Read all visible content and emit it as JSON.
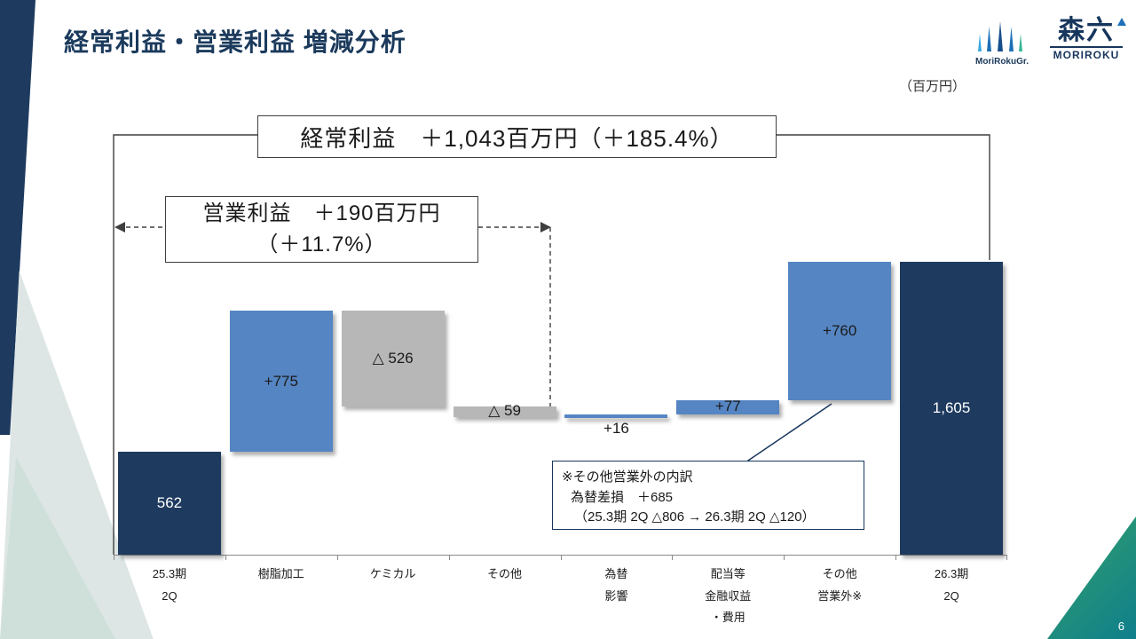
{
  "slide": {
    "title": "経常利益・営業利益 増減分析",
    "unit_label": "（百万円）",
    "page_number": "6"
  },
  "logos": {
    "group_caption": "MoriRokuGr.",
    "brand_kanji": "森六",
    "brand_roman": "MORIROKU"
  },
  "annotations": {
    "ordinary_profit": "経常利益　＋1,043百万円（＋185.4%）",
    "operating_profit_line1": "営業利益　＋190百万円",
    "operating_profit_line2": "（＋11.7%）",
    "callout_line1": "※その他営業外の内訳",
    "callout_line2": "為替差損　＋685",
    "callout_line3": "（25.3期 2Q △806 → 26.3期 2Q △120）"
  },
  "chart_data": {
    "type": "bar",
    "subtype": "waterfall",
    "title": "経常利益・営業利益 増減分析",
    "unit": "百万円",
    "categories": [
      [
        "25.3期",
        "2Q"
      ],
      [
        "樹脂加工"
      ],
      [
        "ケミカル"
      ],
      [
        "その他"
      ],
      [
        "為替",
        "影響"
      ],
      [
        "配当等",
        "金融収益",
        "・費用"
      ],
      [
        "その他",
        "営業外※"
      ],
      [
        "26.3期",
        "2Q"
      ]
    ],
    "values": [
      562,
      775,
      -526,
      -59,
      16,
      77,
      760,
      1605
    ],
    "bar_labels": [
      "562",
      "+775",
      "△ 526",
      "△ 59",
      "+16",
      "+77",
      "+760",
      "1,605"
    ],
    "bar_roles": [
      "total",
      "increase",
      "decrease",
      "decrease",
      "increase",
      "increase",
      "increase",
      "total"
    ],
    "label_placement": [
      "inside",
      "inside",
      "inside",
      "center",
      "below",
      "center",
      "inside",
      "inside"
    ],
    "start_total": 562,
    "end_total": 1605,
    "ordinary_profit_change": "+1,043",
    "ordinary_profit_change_pct": "+185.4%",
    "operating_profit_change": "+190",
    "operating_profit_change_pct": "+11.7%",
    "ylim": [
      0,
      1700
    ],
    "colors": {
      "total": "#1e3a5f",
      "increase": "#5585c2",
      "decrease": "#b7b7b7",
      "label_on_total": "#ffffff",
      "label_on_delta": "#1a1a1a"
    }
  }
}
